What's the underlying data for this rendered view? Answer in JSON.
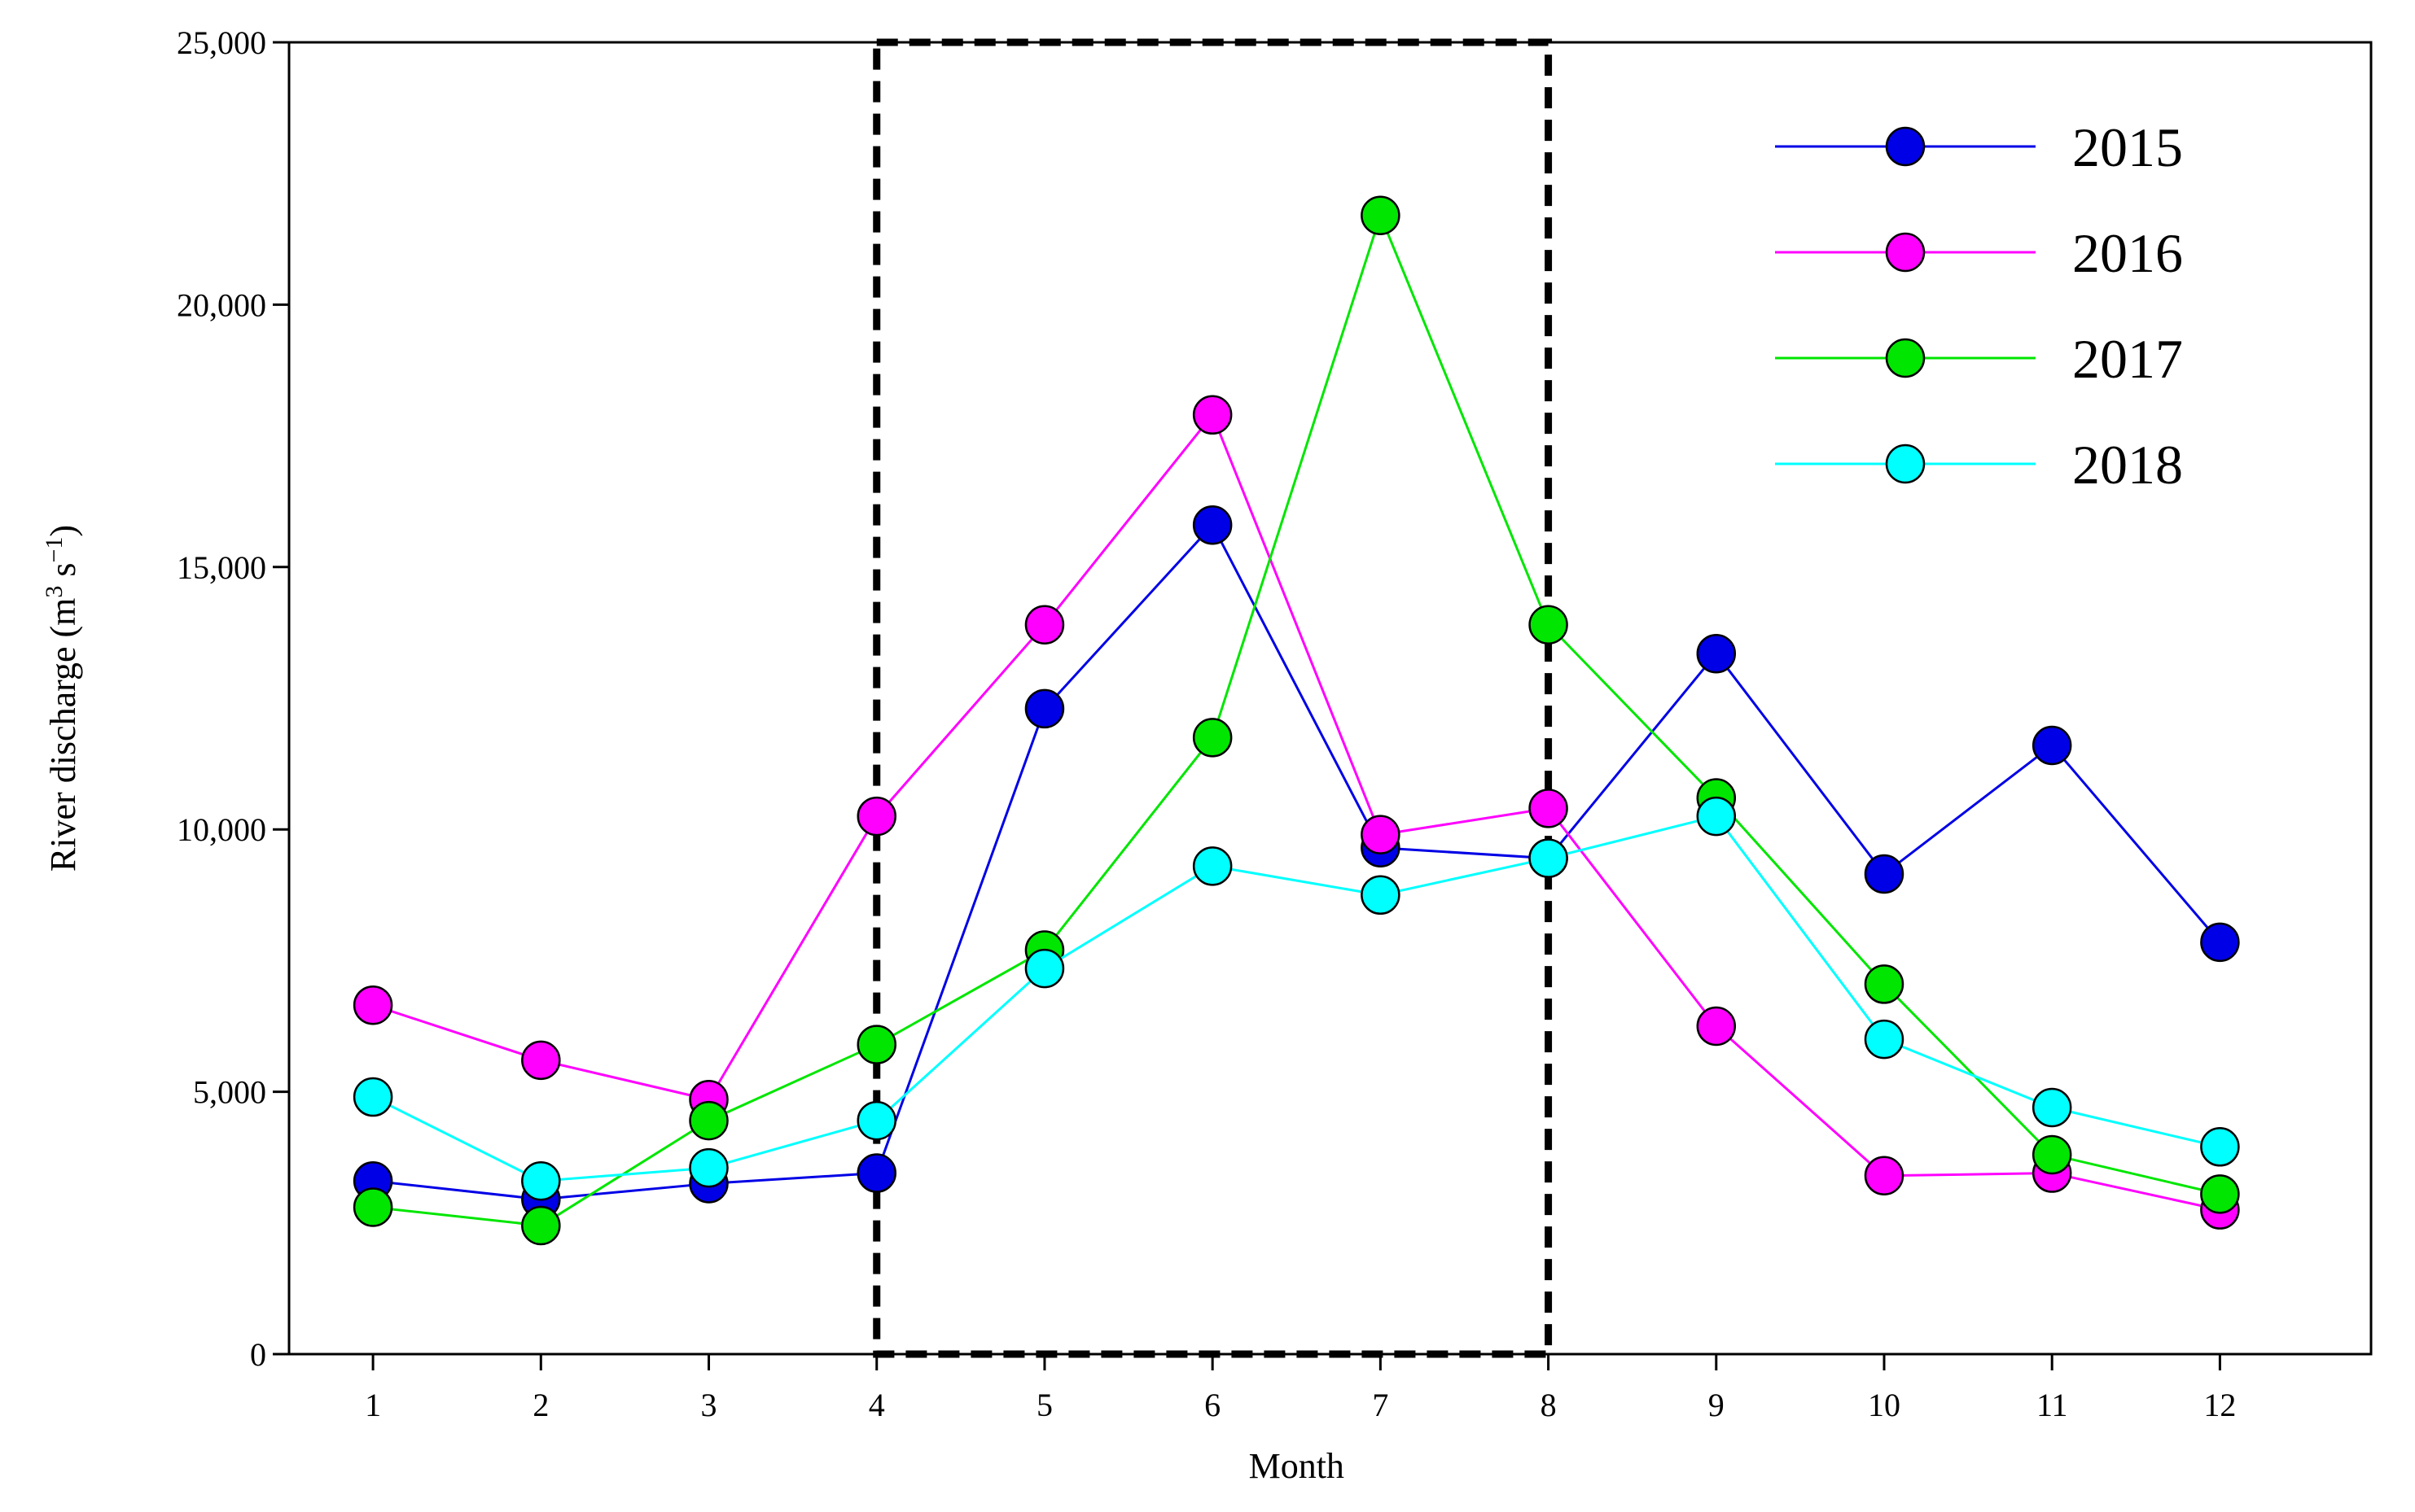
{
  "chart_data": {
    "type": "line",
    "title": "",
    "xlabel": "Month",
    "ylabel": "River discharge (m3 s−1)",
    "ylabel_parts": {
      "base": "River discharge (m",
      "sup1": "3",
      "mid": " s",
      "sup2": "−1",
      "end": ")"
    },
    "x": [
      1,
      2,
      3,
      4,
      5,
      6,
      7,
      8,
      9,
      10,
      11,
      12
    ],
    "x_tick_labels": [
      "1",
      "2",
      "3",
      "4",
      "5",
      "6",
      "7",
      "8",
      "9",
      "10",
      "11",
      "12"
    ],
    "xlim": [
      0.5,
      12.9
    ],
    "ylim": [
      0,
      25000
    ],
    "y_ticks": [
      0,
      5000,
      10000,
      15000,
      20000,
      25000
    ],
    "y_tick_labels": [
      "0",
      "5,000",
      "10,000",
      "15,000",
      "20,000",
      "25,000"
    ],
    "grid": false,
    "legend_position": "top-right",
    "highlight_box": {
      "x_start": 4,
      "x_end": 8,
      "style": "dashed"
    },
    "series": [
      {
        "name": "2015",
        "color": "#0000e6",
        "values": [
          3300,
          2950,
          3250,
          3450,
          12300,
          15800,
          9650,
          9450,
          13350,
          9150,
          11600,
          7850
        ]
      },
      {
        "name": "2016",
        "color": "#ff00ff",
        "values": [
          6650,
          5600,
          4850,
          10250,
          13900,
          17900,
          9900,
          10400,
          6250,
          3400,
          3450,
          2750
        ]
      },
      {
        "name": "2017",
        "color": "#00e600",
        "values": [
          2800,
          2450,
          4450,
          5900,
          7700,
          11750,
          21700,
          13900,
          10600,
          7050,
          3800,
          3050
        ]
      },
      {
        "name": "2018",
        "color": "#00ffff",
        "values": [
          4900,
          3300,
          3550,
          4450,
          7350,
          9300,
          8750,
          9450,
          10250,
          6000,
          4700,
          3950
        ]
      }
    ]
  }
}
